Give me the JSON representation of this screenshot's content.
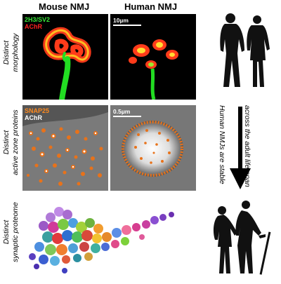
{
  "columns": {
    "mouse": "Mouse NMJ",
    "human": "Human NMJ"
  },
  "rows": {
    "morphology": [
      "Distinct",
      "morphology"
    ],
    "active_zone": [
      "Distinct",
      "active zone proteins"
    ],
    "proteome": [
      "Distinct",
      "synaptic proteome"
    ]
  },
  "panel1": {
    "stain1": "2H3/SV2",
    "stain2": "AChR",
    "stain1_color": "#39e639",
    "stain2_color": "#ff2222"
  },
  "panel2": {
    "scale": "10µm"
  },
  "panel3": {
    "stain1": "SNAP25",
    "stain2": "AChR",
    "stain1_color": "#ff8a1e",
    "stain2_color": "#ffffff"
  },
  "panel4": {
    "scale": "0.5µm"
  },
  "side": {
    "line1": "Human NMJs are stable",
    "line2": "across the adult life-span"
  }
}
